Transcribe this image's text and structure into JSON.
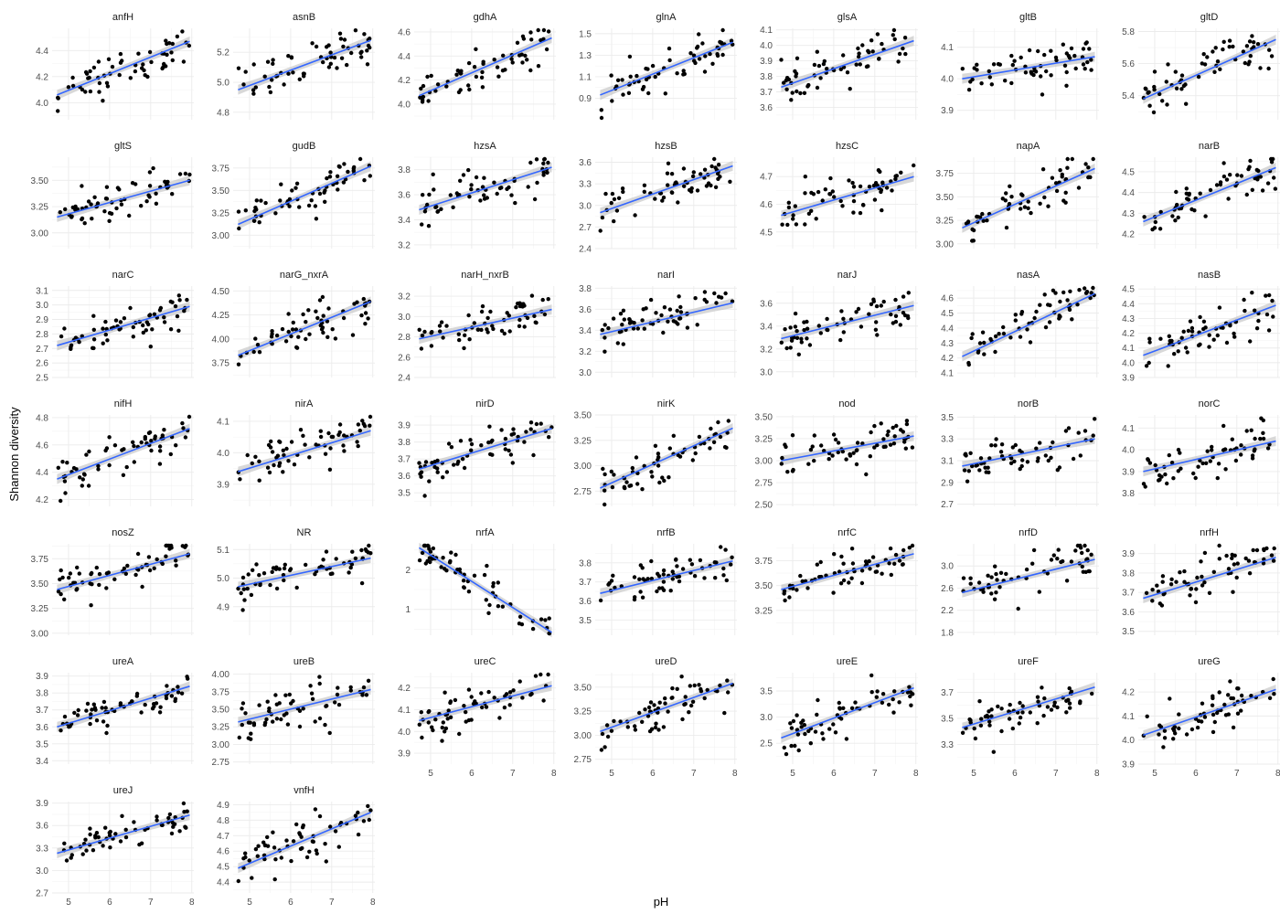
{
  "chart_data": {
    "type": "scatter",
    "facet_layout": "7 columns, shared x axis (pH), free y axis per panel",
    "xlabel": "pH",
    "ylabel": "Shannon diversity",
    "xticks": [
      5,
      6,
      7,
      8
    ],
    "xlim": [
      4.6,
      8.05
    ],
    "grid": true,
    "point_color": "#000000",
    "fit_line_color": "#3366FF",
    "ci_band_color": "#BEBEBE",
    "fit": "linear regression with confidence band",
    "panels": [
      {
        "gene": "anfH",
        "yticks": [
          "4.0",
          "4.2",
          "4.4"
        ],
        "ylim": [
          3.87,
          4.57
        ],
        "fit": [
          [
            4.72,
            4.06
          ],
          [
            7.95,
            4.47
          ]
        ]
      },
      {
        "gene": "asnB",
        "yticks": [
          "4.8",
          "5.0",
          "5.2"
        ],
        "ylim": [
          4.75,
          5.36
        ],
        "fit": [
          [
            4.72,
            4.95
          ],
          [
            7.95,
            5.28
          ]
        ]
      },
      {
        "gene": "gdhA",
        "yticks": [
          "4.0",
          "4.2",
          "4.4",
          "4.6"
        ],
        "ylim": [
          3.87,
          4.63
        ],
        "fit": [
          [
            4.72,
            4.07
          ],
          [
            7.95,
            4.55
          ]
        ]
      },
      {
        "gene": "glnA",
        "yticks": [
          "0.9",
          "1.1",
          "1.3",
          "1.5"
        ],
        "ylim": [
          0.7,
          1.55
        ],
        "fit": [
          [
            4.72,
            0.93
          ],
          [
            7.95,
            1.42
          ]
        ]
      },
      {
        "gene": "glsA",
        "yticks": [
          "3.6",
          "3.7",
          "3.8",
          "3.9",
          "4.0",
          "4.1"
        ],
        "ylim": [
          3.52,
          4.11
        ],
        "fit": [
          [
            4.72,
            3.73
          ],
          [
            7.95,
            4.03
          ]
        ]
      },
      {
        "gene": "gltB",
        "yticks": [
          "3.9",
          "4.0",
          "4.1"
        ],
        "ylim": [
          3.87,
          4.16
        ],
        "fit": [
          [
            4.72,
            4.0
          ],
          [
            7.95,
            4.07
          ]
        ]
      },
      {
        "gene": "gltD",
        "yticks": [
          "5.4",
          "5.6",
          "5.8"
        ],
        "ylim": [
          5.25,
          5.82
        ],
        "fit": [
          [
            4.72,
            5.38
          ],
          [
            7.95,
            5.75
          ]
        ]
      },
      {
        "gene": "gltS",
        "yticks": [
          "3.00",
          "3.25",
          "3.50"
        ],
        "ylim": [
          2.85,
          3.72
        ],
        "fit": [
          [
            4.72,
            3.15
          ],
          [
            7.95,
            3.5
          ]
        ]
      },
      {
        "gene": "gudB",
        "yticks": [
          "3.00",
          "3.25",
          "3.50",
          "3.75"
        ],
        "ylim": [
          2.85,
          3.87
        ],
        "fit": [
          [
            4.72,
            3.12
          ],
          [
            7.95,
            3.77
          ]
        ]
      },
      {
        "gene": "hzsA",
        "yticks": [
          "3.2",
          "3.4",
          "3.6",
          "3.8"
        ],
        "ylim": [
          3.17,
          3.9
        ],
        "fit": [
          [
            4.72,
            3.48
          ],
          [
            7.95,
            3.82
          ]
        ]
      },
      {
        "gene": "hzsB",
        "yticks": [
          "2.4",
          "2.7",
          "3.0",
          "3.3",
          "3.6"
        ],
        "ylim": [
          2.4,
          3.67
        ],
        "fit": [
          [
            4.72,
            2.9
          ],
          [
            7.95,
            3.55
          ]
        ]
      },
      {
        "gene": "hzsC",
        "yticks": [
          "4.5",
          "4.6",
          "4.7"
        ],
        "ylim": [
          4.44,
          4.77
        ],
        "fit": [
          [
            4.72,
            4.56
          ],
          [
            7.95,
            4.7
          ]
        ]
      },
      {
        "gene": "napA",
        "yticks": [
          "3.00",
          "3.25",
          "3.50",
          "3.75"
        ],
        "ylim": [
          2.95,
          3.92
        ],
        "fit": [
          [
            4.72,
            3.17
          ],
          [
            7.95,
            3.8
          ]
        ]
      },
      {
        "gene": "narB",
        "yticks": [
          "4.2",
          "4.3",
          "4.4",
          "4.5"
        ],
        "ylim": [
          4.13,
          4.57
        ],
        "fit": [
          [
            4.72,
            4.26
          ],
          [
            7.95,
            4.52
          ]
        ]
      },
      {
        "gene": "narC",
        "yticks": [
          "2.5",
          "2.6",
          "2.7",
          "2.8",
          "2.9",
          "3.0",
          "3.1"
        ],
        "ylim": [
          2.5,
          3.13
        ],
        "fit": [
          [
            4.72,
            2.72
          ],
          [
            7.95,
            2.99
          ]
        ]
      },
      {
        "gene": "narG_nxrA",
        "yticks": [
          "3.75",
          "4.00",
          "4.25",
          "4.50"
        ],
        "ylim": [
          3.6,
          4.55
        ],
        "fit": [
          [
            4.72,
            3.83
          ],
          [
            7.95,
            4.39
          ]
        ]
      },
      {
        "gene": "narH_nxrB",
        "yticks": [
          "2.4",
          "2.6",
          "2.8",
          "3.0",
          "3.2"
        ],
        "ylim": [
          2.4,
          3.3
        ],
        "fit": [
          [
            4.72,
            2.78
          ],
          [
            7.95,
            3.07
          ]
        ]
      },
      {
        "gene": "narI",
        "yticks": [
          "3.0",
          "3.2",
          "3.4",
          "3.6",
          "3.8"
        ],
        "ylim": [
          2.95,
          3.82
        ],
        "fit": [
          [
            4.72,
            3.36
          ],
          [
            7.95,
            3.66
          ]
        ]
      },
      {
        "gene": "narJ",
        "yticks": [
          "3.0",
          "3.2",
          "3.4",
          "3.6"
        ],
        "ylim": [
          2.95,
          3.75
        ],
        "fit": [
          [
            4.72,
            3.29
          ],
          [
            7.95,
            3.58
          ]
        ]
      },
      {
        "gene": "nasA",
        "yticks": [
          "4.1",
          "4.2",
          "4.3",
          "4.4",
          "4.5",
          "4.6"
        ],
        "ylim": [
          4.07,
          4.68
        ],
        "fit": [
          [
            4.72,
            4.21
          ],
          [
            7.95,
            4.63
          ]
        ]
      },
      {
        "gene": "nasB",
        "yticks": [
          "3.9",
          "4.0",
          "4.1",
          "4.2",
          "4.3",
          "4.4",
          "4.5"
        ],
        "ylim": [
          3.9,
          4.52
        ],
        "fit": [
          [
            4.72,
            4.05
          ],
          [
            7.95,
            4.39
          ]
        ]
      },
      {
        "gene": "nifH",
        "yticks": [
          "4.2",
          "4.4",
          "4.6",
          "4.8"
        ],
        "ylim": [
          4.15,
          4.82
        ],
        "fit": [
          [
            4.72,
            4.35
          ],
          [
            7.95,
            4.72
          ]
        ]
      },
      {
        "gene": "nirA",
        "yticks": [
          "3.9",
          "4.0",
          "4.1"
        ],
        "ylim": [
          3.83,
          4.12
        ],
        "fit": [
          [
            4.72,
            3.94
          ],
          [
            7.95,
            4.07
          ]
        ]
      },
      {
        "gene": "nirD",
        "yticks": [
          "3.5",
          "3.6",
          "3.7",
          "3.8",
          "3.9"
        ],
        "ylim": [
          3.42,
          3.96
        ],
        "fit": [
          [
            4.72,
            3.64
          ],
          [
            7.95,
            3.88
          ]
        ]
      },
      {
        "gene": "nirK",
        "yticks": [
          "2.75",
          "3.00",
          "3.25",
          "3.50"
        ],
        "ylim": [
          2.6,
          3.5
        ],
        "fit": [
          [
            4.72,
            2.78
          ],
          [
            7.95,
            3.37
          ]
        ]
      },
      {
        "gene": "nod",
        "yticks": [
          "2.50",
          "2.75",
          "3.00",
          "3.25",
          "3.50"
        ],
        "ylim": [
          2.48,
          3.52
        ],
        "fit": [
          [
            4.72,
            3.0
          ],
          [
            7.95,
            3.28
          ]
        ]
      },
      {
        "gene": "norB",
        "yticks": [
          "2.7",
          "2.9",
          "3.1",
          "3.3",
          "3.5"
        ],
        "ylim": [
          2.68,
          3.52
        ],
        "fit": [
          [
            4.72,
            3.05
          ],
          [
            7.95,
            3.3
          ]
        ]
      },
      {
        "gene": "norC",
        "yticks": [
          "3.8",
          "3.9",
          "4.0",
          "4.1"
        ],
        "ylim": [
          3.74,
          4.16
        ],
        "fit": [
          [
            4.72,
            3.9
          ],
          [
            7.95,
            4.04
          ]
        ]
      },
      {
        "gene": "nosZ",
        "yticks": [
          "3.00",
          "3.25",
          "3.50",
          "3.75"
        ],
        "ylim": [
          2.98,
          3.9
        ],
        "fit": [
          [
            4.72,
            3.44
          ],
          [
            7.95,
            3.8
          ]
        ]
      },
      {
        "gene": "NR",
        "yticks": [
          "4.9",
          "5.0",
          "5.1"
        ],
        "ylim": [
          4.8,
          5.12
        ],
        "fit": [
          [
            4.72,
            4.97
          ],
          [
            7.95,
            5.07
          ]
        ]
      },
      {
        "gene": "nrfA",
        "yticks": [
          "1",
          "2"
        ],
        "ylim": [
          0.35,
          2.65
        ],
        "fit": [
          [
            4.72,
            2.55
          ],
          [
            7.95,
            0.42
          ]
        ]
      },
      {
        "gene": "nrfB",
        "yticks": [
          "3.5",
          "3.6",
          "3.7",
          "3.8"
        ],
        "ylim": [
          3.42,
          3.9
        ],
        "fit": [
          [
            4.72,
            3.64
          ],
          [
            7.95,
            3.81
          ]
        ]
      },
      {
        "gene": "nrfC",
        "yticks": [
          "3.25",
          "3.50",
          "3.75"
        ],
        "ylim": [
          3.0,
          3.92
        ],
        "fit": [
          [
            4.72,
            3.46
          ],
          [
            7.95,
            3.82
          ]
        ]
      },
      {
        "gene": "nrfD",
        "yticks": [
          "1.8",
          "2.2",
          "2.6",
          "3.0"
        ],
        "ylim": [
          1.75,
          3.4
        ],
        "fit": [
          [
            4.72,
            2.52
          ],
          [
            7.95,
            3.12
          ]
        ]
      },
      {
        "gene": "nrfH",
        "yticks": [
          "3.5",
          "3.6",
          "3.7",
          "3.8",
          "3.9"
        ],
        "ylim": [
          3.48,
          3.95
        ],
        "fit": [
          [
            4.72,
            3.67
          ],
          [
            7.95,
            3.88
          ]
        ]
      },
      {
        "gene": "ureA",
        "yticks": [
          "3.4",
          "3.5",
          "3.6",
          "3.7",
          "3.8",
          "3.9"
        ],
        "ylim": [
          3.38,
          3.92
        ],
        "fit": [
          [
            4.72,
            3.6
          ],
          [
            7.95,
            3.84
          ]
        ]
      },
      {
        "gene": "ureB",
        "yticks": [
          "2.75",
          "3.00",
          "3.25",
          "3.50",
          "3.75",
          "4.00"
        ],
        "ylim": [
          2.72,
          4.02
        ],
        "fit": [
          [
            4.72,
            3.32
          ],
          [
            7.95,
            3.78
          ]
        ]
      },
      {
        "gene": "ureC",
        "yticks": [
          "3.9",
          "4.0",
          "4.1",
          "4.2"
        ],
        "ylim": [
          3.85,
          4.27
        ],
        "fit": [
          [
            4.72,
            4.05
          ],
          [
            7.95,
            4.21
          ]
        ]
      },
      {
        "gene": "ureD",
        "yticks": [
          "2.75",
          "3.00",
          "3.25",
          "3.50"
        ],
        "ylim": [
          2.7,
          3.65
        ],
        "fit": [
          [
            4.72,
            3.04
          ],
          [
            7.95,
            3.54
          ]
        ]
      },
      {
        "gene": "ureE",
        "yticks": [
          "2.5",
          "3.0",
          "3.5"
        ],
        "ylim": [
          2.1,
          3.85
        ],
        "fit": [
          [
            4.72,
            2.6
          ],
          [
            7.95,
            3.56
          ]
        ]
      },
      {
        "gene": "ureF",
        "yticks": [
          "3.3",
          "3.5",
          "3.7"
        ],
        "ylim": [
          3.15,
          3.85
        ],
        "fit": [
          [
            4.72,
            3.43
          ],
          [
            7.95,
            3.74
          ]
        ]
      },
      {
        "gene": "ureG",
        "yticks": [
          "3.9",
          "4.0",
          "4.1",
          "4.2"
        ],
        "ylim": [
          3.9,
          4.28
        ],
        "fit": [
          [
            4.72,
            4.02
          ],
          [
            7.95,
            4.21
          ]
        ]
      },
      {
        "gene": "ureJ",
        "yticks": [
          "2.7",
          "3.0",
          "3.3",
          "3.6",
          "3.9"
        ],
        "ylim": [
          2.7,
          3.92
        ],
        "fit": [
          [
            4.72,
            3.23
          ],
          [
            7.95,
            3.74
          ]
        ]
      },
      {
        "gene": "vnfH",
        "yticks": [
          "4.4",
          "4.5",
          "4.6",
          "4.7",
          "4.8",
          "4.9"
        ],
        "ylim": [
          4.33,
          4.92
        ],
        "fit": [
          [
            4.72,
            4.49
          ],
          [
            7.95,
            4.85
          ]
        ]
      }
    ]
  }
}
